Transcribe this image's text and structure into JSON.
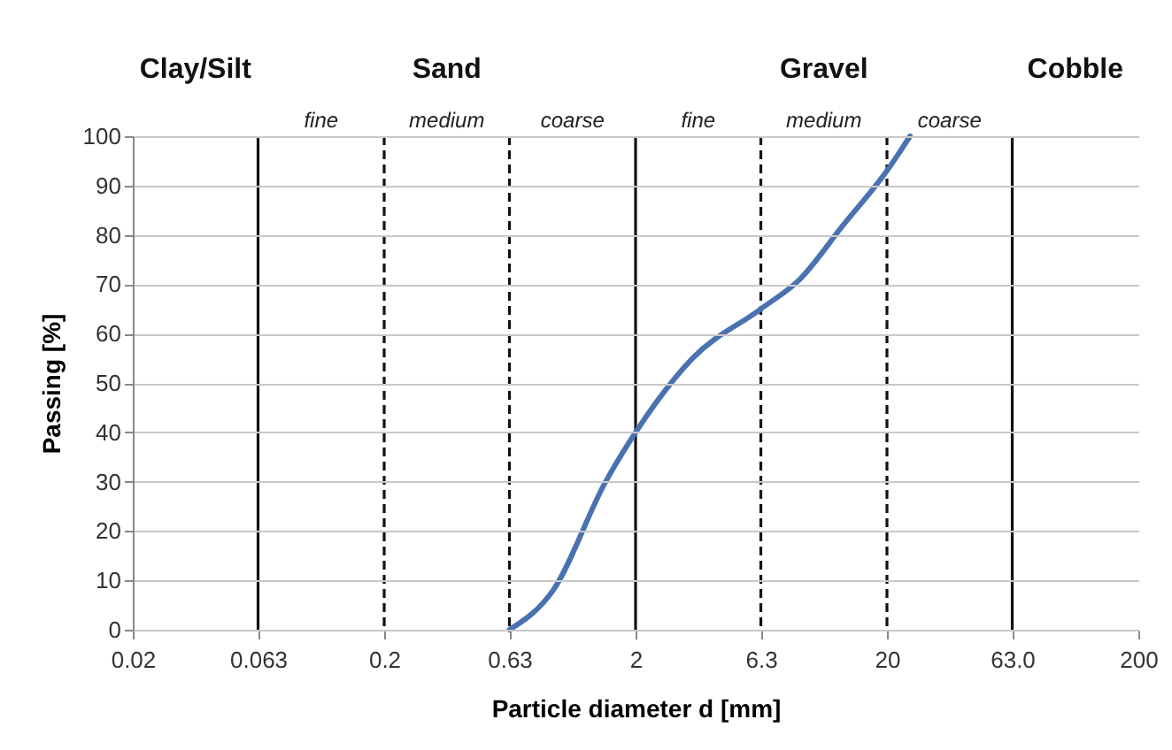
{
  "chart_data": {
    "type": "line",
    "xlabel": "Particle diameter d [mm]",
    "ylabel": "Passing [%]",
    "log": "x",
    "series": [
      {
        "color": "#4a72b0",
        "x": [
          0.63,
          0.94,
          1.52,
          2,
          3.37,
          6.3,
          9.0,
          13.4,
          20,
          24.7
        ],
        "values": [
          0,
          8,
          30,
          40,
          55,
          65,
          71,
          82,
          93,
          100
        ]
      }
    ],
    "xlim": [
      0.02,
      200
    ],
    "xticks": [
      0.02,
      0.063,
      0.2,
      0.63,
      2,
      6.3,
      20,
      {
        "value": 63,
        "label": "63.0"
      },
      200
    ],
    "annotations": [
      "Clay/Silt",
      "Sand",
      "Gravel",
      "Cobble",
      "fine",
      "medium",
      "coarse",
      "fine",
      "medium",
      "coarse"
    ],
    "ylim": [
      0,
      100
    ],
    "yticks": [
      0,
      10,
      20,
      30,
      40,
      50,
      60,
      70,
      80,
      90,
      100
    ],
    "grid": "y",
    "ref_lines": [
      {
        "axis": "x",
        "value": 0.063,
        "line_style": "solid"
      },
      {
        "axis": "x",
        "value": 0.2,
        "line_style": "dashed"
      },
      {
        "axis": "x",
        "value": 0.63,
        "line_style": "dashed"
      },
      {
        "axis": "x",
        "value": 2,
        "line_style": "solid"
      },
      {
        "axis": "x",
        "value": 6.3,
        "line_style": "dashed"
      },
      {
        "axis": "x",
        "value": 20,
        "line_style": "dashed"
      },
      {
        "axis": "x",
        "value": 63,
        "line_style": "solid"
      }
    ]
  }
}
